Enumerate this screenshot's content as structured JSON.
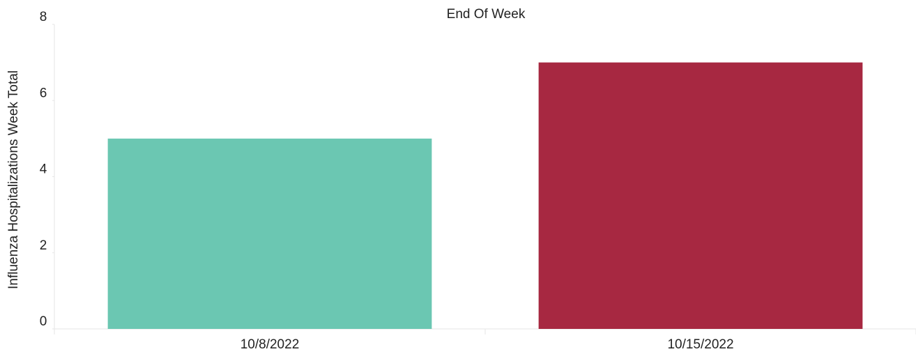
{
  "chart_data": {
    "type": "bar",
    "title": "End Of Week",
    "ylabel": "Influenza Hospitalizations Week Total",
    "categories": [
      "10/8/2022",
      "10/15/2022"
    ],
    "values": [
      5,
      7
    ],
    "colors": [
      "#6bc7b2",
      "#a72841"
    ],
    "ylim": [
      0,
      8
    ],
    "yticks": [
      0,
      2,
      4,
      6,
      8
    ],
    "grid": false
  }
}
